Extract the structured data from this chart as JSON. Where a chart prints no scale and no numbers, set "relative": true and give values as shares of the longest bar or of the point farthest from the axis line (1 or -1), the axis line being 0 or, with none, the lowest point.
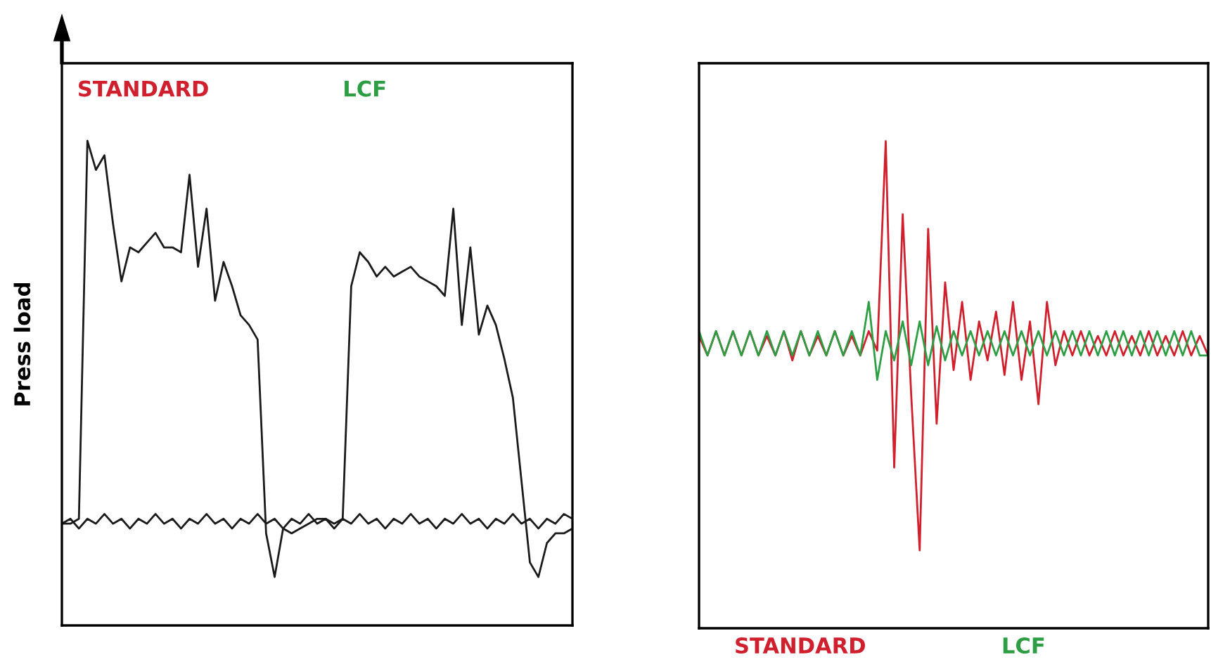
{
  "chart_data": [
    {
      "type": "line",
      "relative": true,
      "ylabel": "Press load",
      "annotations": [
        "STANDARD",
        "LCF"
      ],
      "categories": [
        null,
        null,
        null,
        null,
        null,
        null,
        null,
        null,
        null,
        null,
        null,
        null,
        null,
        null,
        null,
        null,
        null,
        null,
        null,
        null,
        null,
        null,
        null,
        null,
        null,
        null,
        null,
        null,
        null,
        null,
        null,
        null,
        null,
        null,
        null,
        null,
        null,
        null,
        null,
        null,
        null,
        null,
        null,
        null,
        null,
        null,
        null,
        null,
        null,
        null,
        null,
        null,
        null,
        null,
        null,
        null,
        null,
        null,
        null,
        null,
        null
      ],
      "series": [
        {
          "color": "#1a1a1a",
          "values": [
            0.21,
            0.21,
            0.22,
            1.0,
            0.94,
            0.97,
            0.83,
            0.71,
            0.78,
            0.77,
            0.79,
            0.81,
            0.78,
            0.78,
            0.77,
            0.93,
            0.74,
            0.86,
            0.67,
            0.75,
            0.7,
            0.64,
            0.62,
            0.59,
            0.19,
            0.1,
            0.2,
            0.19,
            0.2,
            0.21,
            0.22,
            0.22,
            0.21,
            0.22,
            0.7,
            0.77,
            0.75,
            0.72,
            0.74,
            0.72,
            0.73,
            0.74,
            0.72,
            0.71,
            0.7,
            0.68,
            0.86,
            0.62,
            0.78,
            0.6,
            0.66,
            0.62,
            0.55,
            0.47,
            0.3,
            0.13,
            0.1,
            0.17,
            0.19,
            0.19,
            0.2
          ]
        },
        {
          "color": "#1a1a1a",
          "values": [
            0.21,
            0.22,
            0.2,
            0.22,
            0.21,
            0.23,
            0.21,
            0.22,
            0.2,
            0.22,
            0.21,
            0.23,
            0.21,
            0.22,
            0.2,
            0.22,
            0.21,
            0.23,
            0.21,
            0.22,
            0.2,
            0.22,
            0.21,
            0.23,
            0.21,
            0.22,
            0.2,
            0.22,
            0.21,
            0.23,
            0.21,
            0.22,
            0.2,
            0.22,
            0.21,
            0.23,
            0.21,
            0.22,
            0.2,
            0.22,
            0.21,
            0.23,
            0.21,
            0.22,
            0.2,
            0.22,
            0.21,
            0.23,
            0.21,
            0.22,
            0.2,
            0.22,
            0.21,
            0.23,
            0.21,
            0.22,
            0.2,
            0.22,
            0.21,
            0.23,
            0.22
          ]
        }
      ]
    },
    {
      "type": "line",
      "relative": true,
      "categories": [
        null,
        null,
        null,
        null,
        null,
        null,
        null,
        null,
        null,
        null,
        null,
        null,
        null,
        null,
        null,
        null,
        null,
        null,
        null,
        null,
        null,
        null,
        null,
        null,
        null,
        null,
        null,
        null,
        null,
        null,
        null,
        null,
        null,
        null,
        null,
        null,
        null,
        null,
        null,
        null,
        null,
        null,
        null,
        null,
        null,
        null,
        null,
        null,
        null,
        null,
        null,
        null,
        null,
        null,
        null,
        null,
        null,
        null,
        null,
        null,
        null
      ],
      "series": [
        {
          "name": "STANDARD",
          "color": "#d0202e",
          "values": [
            0.6,
            0.56,
            0.61,
            0.56,
            0.61,
            0.56,
            0.61,
            0.56,
            0.6,
            0.56,
            0.61,
            0.55,
            0.61,
            0.56,
            0.6,
            0.56,
            0.61,
            0.56,
            0.6,
            0.56,
            0.61,
            0.57,
            1.0,
            0.33,
            0.85,
            0.48,
            0.16,
            0.82,
            0.42,
            0.71,
            0.53,
            0.67,
            0.51,
            0.63,
            0.55,
            0.65,
            0.52,
            0.67,
            0.51,
            0.63,
            0.46,
            0.67,
            0.54,
            0.61,
            0.56,
            0.61,
            0.56,
            0.6,
            0.56,
            0.61,
            0.56,
            0.6,
            0.56,
            0.61,
            0.56,
            0.6,
            0.56,
            0.61,
            0.56,
            0.6,
            0.56
          ]
        },
        {
          "name": "LCF",
          "color": "#2e9e44",
          "values": [
            0.61,
            0.56,
            0.61,
            0.56,
            0.61,
            0.56,
            0.61,
            0.56,
            0.61,
            0.56,
            0.61,
            0.56,
            0.61,
            0.56,
            0.61,
            0.56,
            0.61,
            0.56,
            0.61,
            0.56,
            0.67,
            0.51,
            0.61,
            0.55,
            0.63,
            0.54,
            0.63,
            0.54,
            0.62,
            0.55,
            0.61,
            0.56,
            0.61,
            0.56,
            0.61,
            0.56,
            0.61,
            0.56,
            0.61,
            0.56,
            0.61,
            0.56,
            0.61,
            0.56,
            0.61,
            0.56,
            0.61,
            0.56,
            0.61,
            0.56,
            0.61,
            0.56,
            0.61,
            0.56,
            0.61,
            0.56,
            0.61,
            0.56,
            0.61,
            0.56,
            0.56
          ]
        }
      ]
    }
  ]
}
